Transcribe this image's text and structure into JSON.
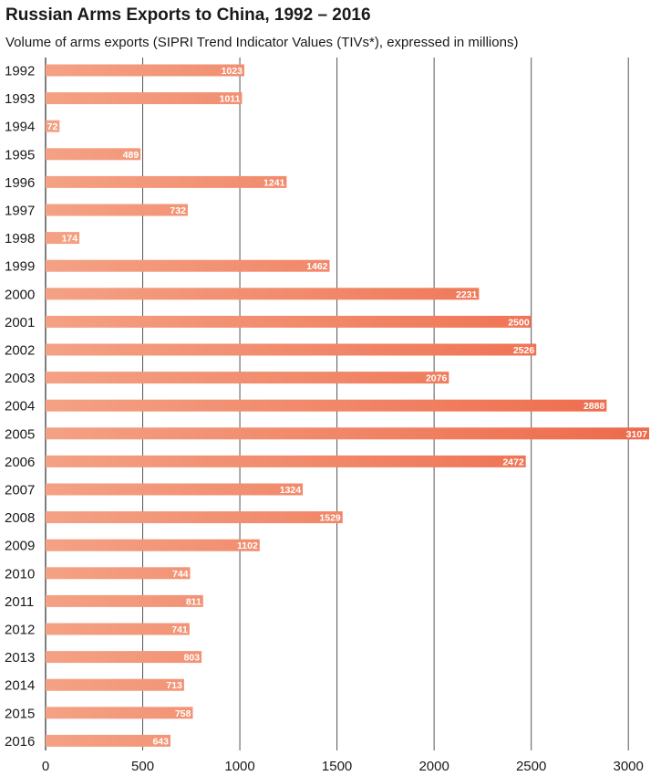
{
  "colors": {
    "bar_light": "#f4a184",
    "bar_dark": "#ee6a4b",
    "grid": "#555555",
    "text": "#1a1a1a"
  },
  "chart_data": {
    "type": "bar",
    "orientation": "horizontal",
    "title": "Russian Arms Exports to China, 1992 – 2016",
    "subtitle": "Volume of arms exports (SIPRI Trend Indicator Values (TIVs*), expressed in millions)",
    "categories": [
      "1992",
      "1993",
      "1994",
      "1995",
      "1996",
      "1997",
      "1998",
      "1999",
      "2000",
      "2001",
      "2002",
      "2003",
      "2004",
      "2005",
      "2006",
      "2007",
      "2008",
      "2009",
      "2010",
      "2011",
      "2012",
      "2013",
      "2014",
      "2015",
      "2016"
    ],
    "values": [
      1023,
      1011,
      72,
      489,
      1241,
      732,
      174,
      1462,
      2231,
      2500,
      2526,
      2076,
      2888,
      3107,
      2472,
      1324,
      1529,
      1102,
      744,
      811,
      741,
      803,
      713,
      758,
      643
    ],
    "xlim": [
      0,
      3107
    ],
    "xticks": [
      0,
      500,
      1000,
      1500,
      2000,
      2500,
      3000
    ],
    "grid": "vertical"
  }
}
